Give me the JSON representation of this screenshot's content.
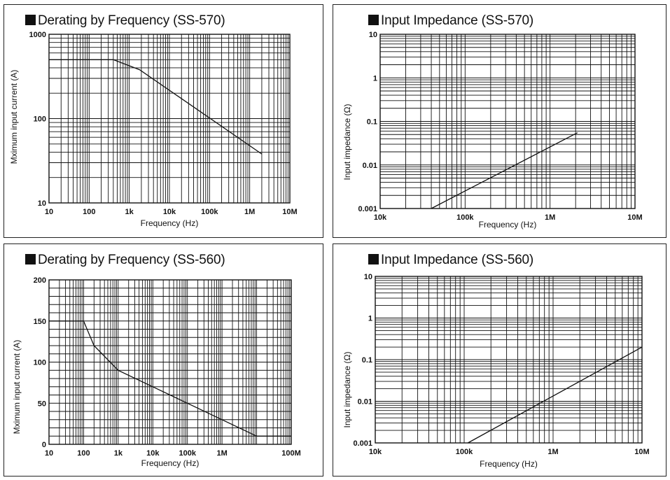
{
  "chart_data": [
    {
      "type": "line",
      "title": "Derating by Frequency (SS-570)",
      "xlabel": "Frequency (Hz)",
      "ylabel": "Mximum input current (A)",
      "xscale": "log",
      "yscale": "log",
      "xlim": [
        10,
        10000000
      ],
      "ylim": [
        10,
        1000
      ],
      "xticks": [
        {
          "v": 10,
          "t": "10"
        },
        {
          "v": 100,
          "t": "100"
        },
        {
          "v": 1000,
          "t": "1k"
        },
        {
          "v": 10000,
          "t": "10k"
        },
        {
          "v": 100000,
          "t": "100k"
        },
        {
          "v": 1000000,
          "t": "1M"
        },
        {
          "v": 10000000,
          "t": "10M"
        }
      ],
      "yticks": [
        {
          "v": 10,
          "t": "10"
        },
        {
          "v": 100,
          "t": "100"
        },
        {
          "v": 1000,
          "t": "1000"
        }
      ],
      "grid": true,
      "series": [
        {
          "x": [
            10,
            400,
            1800,
            2000000
          ],
          "y": [
            500,
            500,
            380,
            38
          ]
        }
      ]
    },
    {
      "type": "line",
      "title": "Input Impedance (SS-570)",
      "xlabel": "Frequency (Hz)",
      "ylabel": "Input impedance (Ω)",
      "xscale": "log",
      "yscale": "log",
      "xlim": [
        10000,
        10000000
      ],
      "ylim": [
        0.001,
        10
      ],
      "xticks": [
        {
          "v": 10000,
          "t": "10k"
        },
        {
          "v": 100000,
          "t": "100k"
        },
        {
          "v": 1000000,
          "t": "1M"
        },
        {
          "v": 10000000,
          "t": "10M"
        }
      ],
      "yticks": [
        {
          "v": 0.001,
          "t": "0.001"
        },
        {
          "v": 0.01,
          "t": "0.01"
        },
        {
          "v": 0.1,
          "t": "0.1"
        },
        {
          "v": 1,
          "t": "1"
        },
        {
          "v": 10,
          "t": "10"
        }
      ],
      "grid": true,
      "series": [
        {
          "x": [
            40000,
            2100000
          ],
          "y": [
            0.001,
            0.055
          ]
        }
      ]
    },
    {
      "type": "line",
      "title": "Derating by Frequency (SS-560)",
      "xlabel": "Frequency (Hz)",
      "ylabel": "Mximum input current (A)",
      "xscale": "log",
      "yscale": "linear",
      "xlim": [
        10,
        100000000
      ],
      "ylim": [
        0,
        200
      ],
      "xticks": [
        {
          "v": 10,
          "t": "10"
        },
        {
          "v": 100,
          "t": "100"
        },
        {
          "v": 1000,
          "t": "1k"
        },
        {
          "v": 10000,
          "t": "10k"
        },
        {
          "v": 100000,
          "t": "100k"
        },
        {
          "v": 1000000,
          "t": "1M"
        },
        {
          "v": 100000000,
          "t": "100M"
        }
      ],
      "yticks": [
        {
          "v": 0,
          "t": "0"
        },
        {
          "v": 50,
          "t": "50"
        },
        {
          "v": 100,
          "t": "100"
        },
        {
          "v": 150,
          "t": "150"
        },
        {
          "v": 200,
          "t": "200"
        }
      ],
      "grid": true,
      "series": [
        {
          "x": [
            10,
            100,
            200,
            1000,
            10000,
            100000,
            1000000,
            10000000,
            100000000
          ],
          "y": [
            150,
            150,
            120,
            90,
            70,
            50,
            30,
            10,
            10
          ]
        }
      ]
    },
    {
      "type": "line",
      "title": "Input Impedance (SS-560)",
      "xlabel": "Frequency (Hz)",
      "ylabel": "Input impedance (Ω)",
      "xscale": "log",
      "yscale": "log",
      "xlim": [
        10000,
        10000000
      ],
      "ylim": [
        0.001,
        10
      ],
      "xticks": [
        {
          "v": 10000,
          "t": "10k"
        },
        {
          "v": 100000,
          "t": "100k"
        },
        {
          "v": 1000000,
          "t": "1M"
        },
        {
          "v": 10000000,
          "t": "10M"
        }
      ],
      "yticks": [
        {
          "v": 0.001,
          "t": "0.001"
        },
        {
          "v": 0.01,
          "t": "0.01"
        },
        {
          "v": 0.1,
          "t": "0.1"
        },
        {
          "v": 1,
          "t": "1"
        },
        {
          "v": 10,
          "t": "10"
        }
      ],
      "grid": true,
      "series": [
        {
          "x": [
            110000,
            10000000
          ],
          "y": [
            0.001,
            0.2
          ]
        }
      ]
    }
  ]
}
